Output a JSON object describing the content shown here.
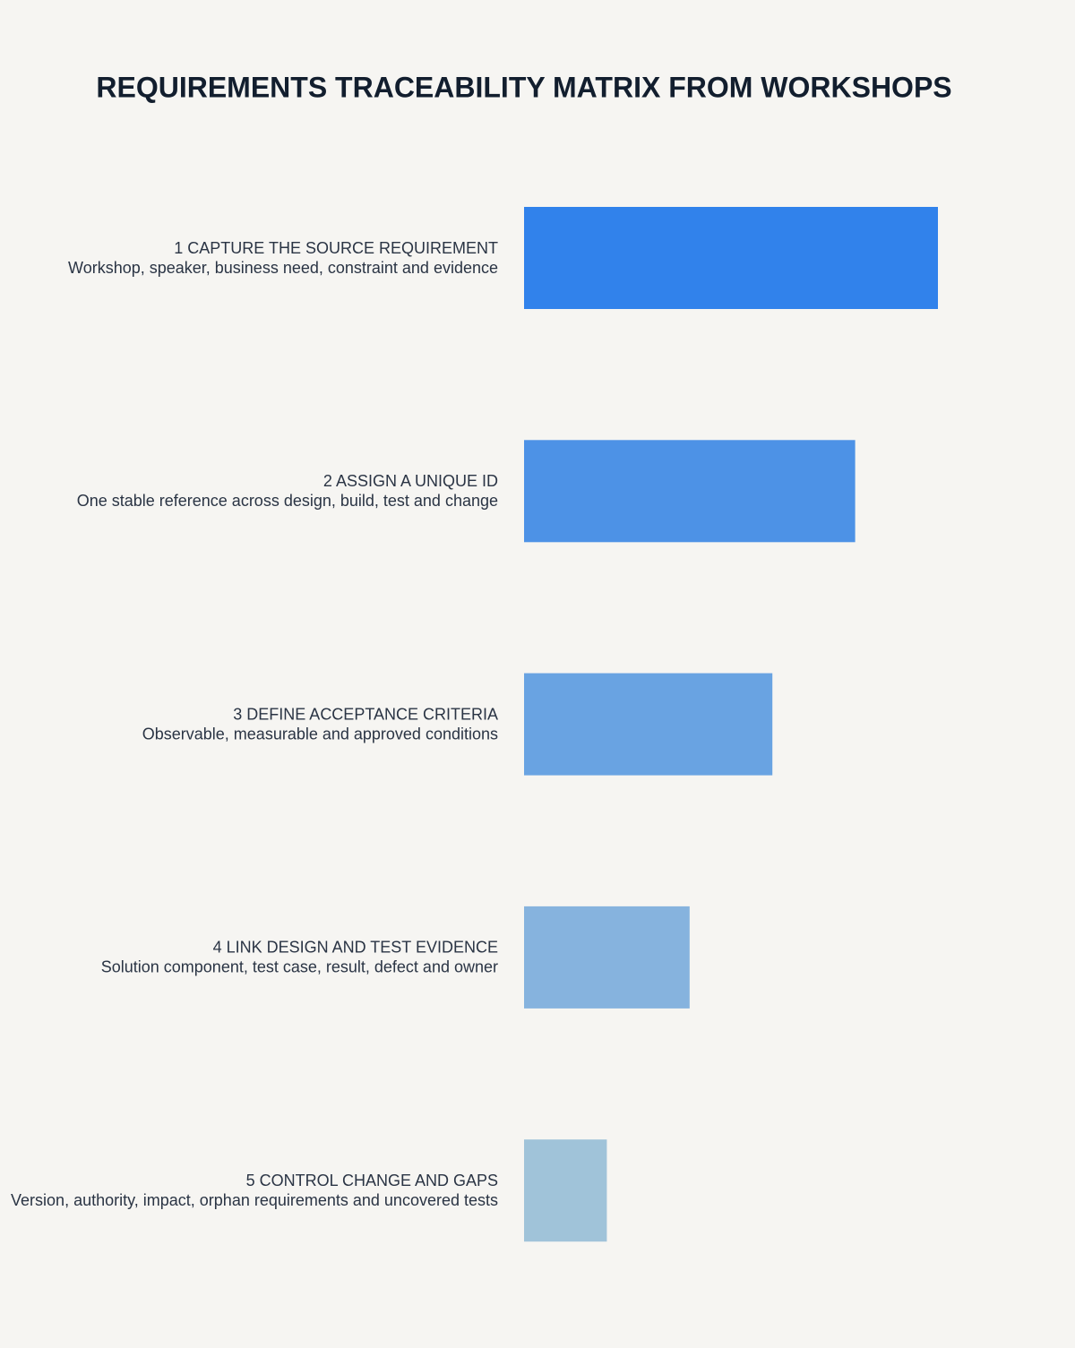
{
  "chart_data": {
    "type": "bar",
    "title": "REQUIREMENTS TRACEABILITY MATRIX FROM WORKSHOPS",
    "categories": [
      "1 CAPTURE THE SOURCE REQUIREMENT",
      "2 ASSIGN A UNIQUE ID",
      "3 DEFINE ACCEPTANCE CRITERIA",
      "4 LINK DESIGN AND TEST EVIDENCE",
      "5 CONTROL CHANGE AND GAPS"
    ],
    "descriptions": [
      "Workshop, speaker, business need, constraint and evidence",
      "One stable reference across design, build, test and change",
      "Observable, measurable and approved conditions",
      "Solution component, test case, result, defect and owner",
      "Version, authority, impact, orphan requirements and uncovered tests"
    ],
    "values": [
      5,
      4,
      3,
      2,
      1
    ],
    "colors": [
      "#3182eb",
      "#4d92e6",
      "#69a3e2",
      "#86b3de",
      "#a0c3d9"
    ]
  }
}
